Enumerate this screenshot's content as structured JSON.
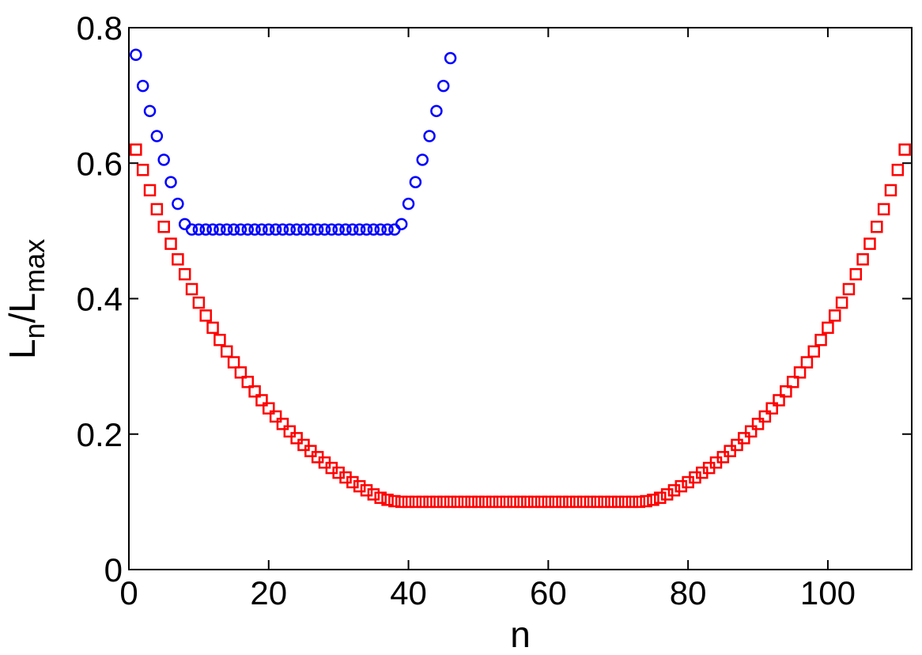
{
  "chart_data": {
    "type": "scatter",
    "xlabel": "n",
    "ylabel": {
      "main": "L",
      "sub1": "n",
      "sep": "/L",
      "sub2": "max"
    },
    "xlim": [
      0,
      112
    ],
    "ylim": [
      0,
      0.8
    ],
    "xticks": [
      0,
      20,
      40,
      60,
      80,
      100
    ],
    "yticks": [
      0,
      0.2,
      0.4,
      0.6,
      0.8
    ],
    "xtick_labels": [
      "0",
      "20",
      "40",
      "60",
      "80",
      "100"
    ],
    "ytick_labels": [
      "0",
      "0.2",
      "0.4",
      "0.6",
      "0.8"
    ],
    "grid": false,
    "series": [
      {
        "marker": "circle",
        "color": "#0000ff",
        "x": [
          1,
          2,
          3,
          4,
          5,
          6,
          7,
          8,
          9,
          10,
          11,
          12,
          13,
          14,
          15,
          16,
          17,
          18,
          19,
          20,
          21,
          22,
          23,
          24,
          25,
          26,
          27,
          28,
          29,
          30,
          31,
          32,
          33,
          34,
          35,
          36,
          37,
          38,
          39,
          40,
          41,
          42,
          43,
          44,
          45,
          46
        ],
        "y": [
          0.76,
          0.714,
          0.677,
          0.64,
          0.605,
          0.572,
          0.54,
          0.51,
          0.502,
          0.502,
          0.502,
          0.502,
          0.502,
          0.502,
          0.502,
          0.502,
          0.502,
          0.502,
          0.502,
          0.502,
          0.502,
          0.502,
          0.502,
          0.502,
          0.502,
          0.502,
          0.502,
          0.502,
          0.502,
          0.502,
          0.502,
          0.502,
          0.502,
          0.502,
          0.502,
          0.502,
          0.502,
          0.502,
          0.51,
          0.54,
          0.572,
          0.605,
          0.64,
          0.677,
          0.714,
          0.755
        ]
      },
      {
        "marker": "square",
        "color": "#ff0000",
        "x": [
          1,
          2,
          3,
          4,
          5,
          6,
          7,
          8,
          9,
          10,
          11,
          12,
          13,
          14,
          15,
          16,
          17,
          18,
          19,
          20,
          21,
          22,
          23,
          24,
          25,
          26,
          27,
          28,
          29,
          30,
          31,
          32,
          33,
          34,
          35,
          36,
          37,
          38,
          39,
          40,
          41,
          42,
          43,
          44,
          45,
          46,
          47,
          48,
          49,
          50,
          51,
          52,
          53,
          54,
          55,
          56,
          57,
          58,
          59,
          60,
          61,
          62,
          63,
          64,
          65,
          66,
          67,
          68,
          69,
          70,
          71,
          72,
          73,
          74,
          75,
          76,
          77,
          78,
          79,
          80,
          81,
          82,
          83,
          84,
          85,
          86,
          87,
          88,
          89,
          90,
          91,
          92,
          93,
          94,
          95,
          96,
          97,
          98,
          99,
          100,
          101,
          102,
          103,
          104,
          105,
          106,
          107,
          108,
          109,
          110,
          111
        ],
        "y": [
          0.62,
          0.59,
          0.56,
          0.532,
          0.506,
          0.481,
          0.458,
          0.436,
          0.414,
          0.394,
          0.375,
          0.357,
          0.339,
          0.322,
          0.306,
          0.291,
          0.277,
          0.263,
          0.25,
          0.238,
          0.226,
          0.215,
          0.204,
          0.194,
          0.184,
          0.175,
          0.166,
          0.158,
          0.15,
          0.143,
          0.136,
          0.129,
          0.123,
          0.117,
          0.111,
          0.106,
          0.103,
          0.101,
          0.1,
          0.1,
          0.1,
          0.1,
          0.1,
          0.1,
          0.1,
          0.1,
          0.1,
          0.1,
          0.1,
          0.1,
          0.1,
          0.1,
          0.1,
          0.1,
          0.1,
          0.1,
          0.1,
          0.1,
          0.1,
          0.1,
          0.1,
          0.1,
          0.1,
          0.1,
          0.1,
          0.1,
          0.1,
          0.1,
          0.1,
          0.1,
          0.1,
          0.1,
          0.1,
          0.101,
          0.103,
          0.106,
          0.111,
          0.117,
          0.123,
          0.129,
          0.136,
          0.143,
          0.15,
          0.158,
          0.166,
          0.175,
          0.184,
          0.194,
          0.204,
          0.215,
          0.226,
          0.238,
          0.25,
          0.263,
          0.277,
          0.291,
          0.306,
          0.322,
          0.339,
          0.357,
          0.375,
          0.394,
          0.414,
          0.436,
          0.458,
          0.481,
          0.506,
          0.532,
          0.56,
          0.59,
          0.62
        ]
      }
    ]
  }
}
